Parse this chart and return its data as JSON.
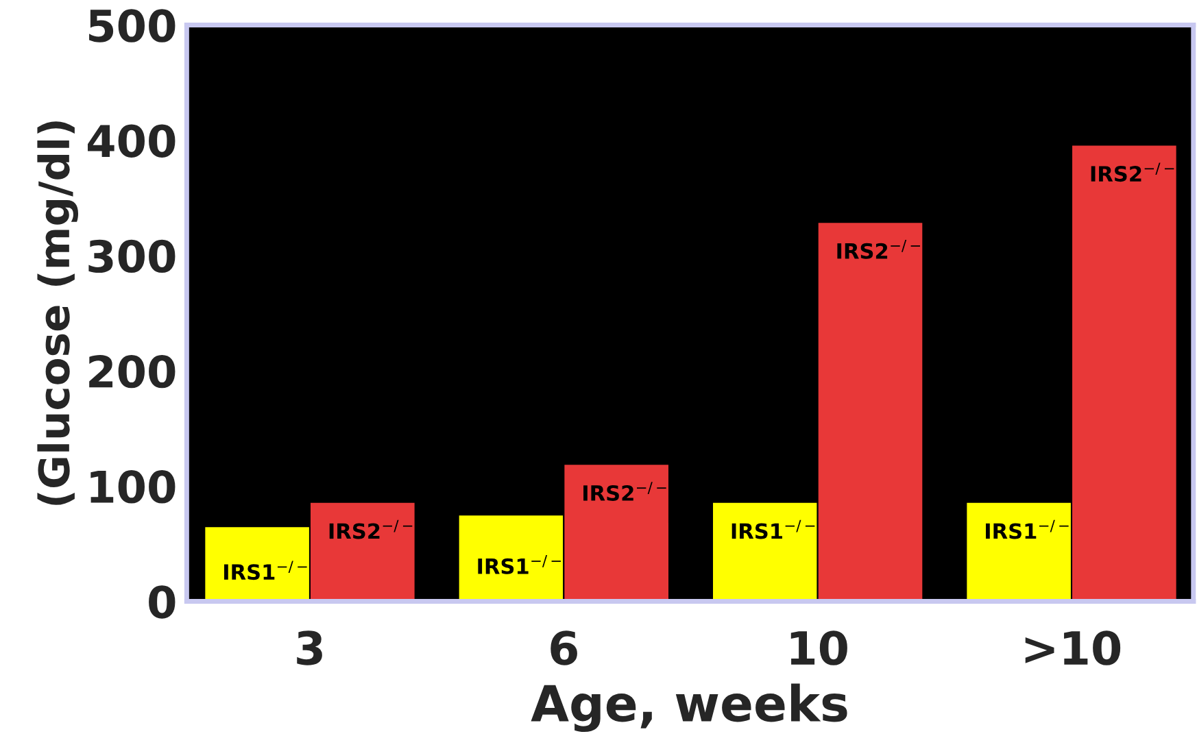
{
  "chart_data": {
    "type": "bar",
    "xlabel": "Age, weeks",
    "ylabel": "(Glucose (mg/dl)",
    "categories": [
      "3",
      "6",
      "10",
      ">10"
    ],
    "series": [
      {
        "name": "IRS1$^{−/−}$",
        "color": "#ffff00",
        "values": [
          65,
          75,
          86,
          86
        ]
      },
      {
        "name": "IRS2$^{−/−}$",
        "color": "#e83838",
        "values": [
          86,
          119,
          329,
          396
        ]
      }
    ],
    "ylim": [
      0,
      500
    ],
    "yticks": [
      0,
      100,
      200,
      300,
      400,
      500
    ],
    "grid": false,
    "legend": false
  }
}
